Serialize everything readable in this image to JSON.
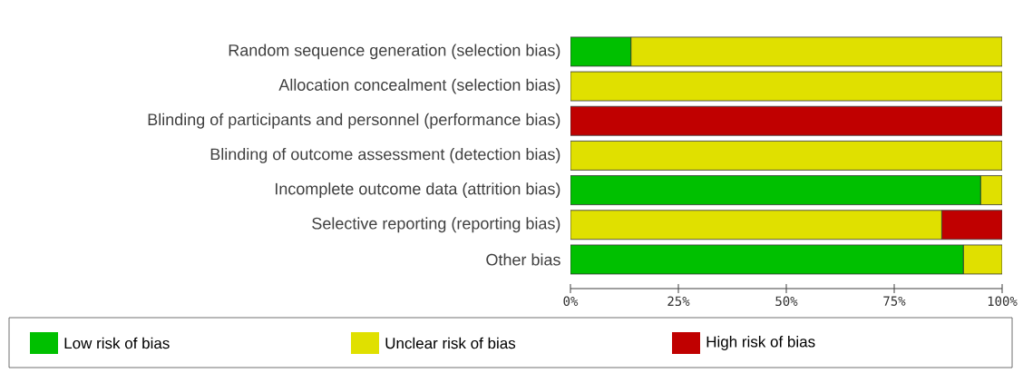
{
  "chart_data": {
    "type": "bar",
    "orientation": "horizontal",
    "stacked": true,
    "categories": [
      "Random sequence generation (selection bias)",
      "Allocation concealment (selection bias)",
      "Blinding of participants and personnel (performance bias)",
      "Blinding of outcome assessment (detection bias)",
      "Incomplete outcome data (attrition bias)",
      "Selective reporting (reporting bias)",
      "Other bias"
    ],
    "series": [
      {
        "name": "Low risk of bias",
        "color": "#00c000",
        "values": [
          14,
          0,
          0,
          0,
          95,
          0,
          91
        ]
      },
      {
        "name": "Unclear risk of bias",
        "color": "#e0e000",
        "values": [
          86,
          100,
          0,
          100,
          5,
          86,
          9
        ]
      },
      {
        "name": "High risk of bias",
        "color": "#c00000",
        "values": [
          0,
          0,
          100,
          0,
          0,
          14,
          0
        ]
      }
    ],
    "xlim": [
      0,
      100
    ],
    "xticks": [
      {
        "value": 0,
        "label": "0%"
      },
      {
        "value": 25,
        "label": "25%"
      },
      {
        "value": 50,
        "label": "50%"
      },
      {
        "value": 75,
        "label": "75%"
      },
      {
        "value": 100,
        "label": "100%"
      }
    ],
    "grid": false,
    "legend": "bottom"
  }
}
